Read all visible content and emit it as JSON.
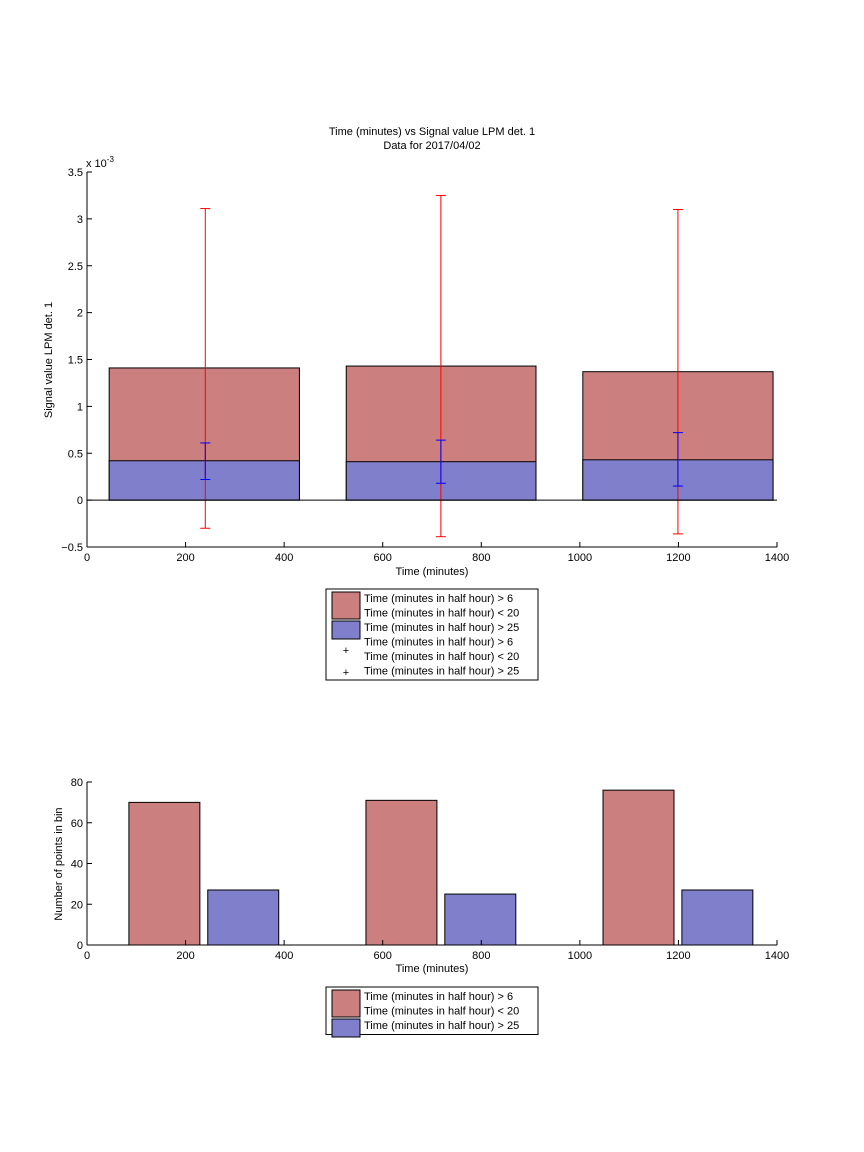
{
  "chart_data": [
    {
      "type": "bar",
      "title": "Time (minutes) vs Signal value LPM det. 1",
      "subtitle": "Data for 2017/04/02",
      "xlabel": "Time (minutes)",
      "ylabel": "Signal value LPM det. 1",
      "y_exponent_label": "x 10",
      "y_exponent_power": "-3",
      "xlim": [
        0,
        1400
      ],
      "ylim": [
        -0.5,
        3.5
      ],
      "y_scale_note": "values in units of 1e-3",
      "x_ticks": [
        0,
        200,
        400,
        600,
        800,
        1000,
        1200,
        1400
      ],
      "x_tick_labels": [
        "0",
        "200",
        "400",
        "600",
        "800",
        "1000",
        "1200",
        "1400"
      ],
      "y_ticks": [
        -0.5,
        0,
        0.5,
        1,
        1.5,
        2,
        2.5,
        3,
        3.5
      ],
      "y_tick_labels": [
        "−0.5",
        "0",
        "0.5",
        "1",
        "1.5",
        "2",
        "2.5",
        "3",
        "3.5"
      ],
      "grid": false,
      "bar_groups": [
        {
          "x_start": 45,
          "x_end": 431,
          "center": 240
        },
        {
          "x_start": 526,
          "x_end": 911,
          "center": 718
        },
        {
          "x_start": 1006,
          "x_end": 1392,
          "center": 1199
        }
      ],
      "series": [
        {
          "name": "Time (minutes in half hour) > 6\nTime (minutes in half hour) < 20",
          "color": "#cc7f7f",
          "values": [
            1.41,
            1.43,
            1.37
          ],
          "errorbar_color": "#ff0000",
          "err_low": [
            -0.3,
            -0.39,
            -0.36
          ],
          "err_high": [
            3.11,
            3.25,
            3.1
          ]
        },
        {
          "name": "Time (minutes in half hour) > 25",
          "color": "#7f7fcc",
          "values": [
            0.42,
            0.41,
            0.43
          ],
          "errorbar_color": "#0000ff",
          "err_low": [
            0.22,
            0.18,
            0.15
          ],
          "err_high": [
            0.61,
            0.64,
            0.72
          ]
        }
      ],
      "legend": {
        "placement": "below",
        "entries": [
          {
            "type": "patch",
            "color": "#cc7f7f",
            "lines": [
              "Time (minutes in half hour) > 6",
              "Time (minutes in half hour) < 20"
            ]
          },
          {
            "type": "patch",
            "color": "#7f7fcc",
            "lines": [
              "Time (minutes in half hour) > 25"
            ]
          },
          {
            "type": "marker",
            "color": "#ff0000",
            "marker": "+",
            "lines": [
              "Time (minutes in half hour) > 6",
              "Time (minutes in half hour) < 20"
            ]
          },
          {
            "type": "marker",
            "color": "#0000ff",
            "marker": "+",
            "lines": [
              "Time (minutes in half hour) > 25"
            ]
          }
        ]
      }
    },
    {
      "type": "bar",
      "title": "",
      "xlabel": "Time (minutes)",
      "ylabel": "Number of points in bin",
      "xlim": [
        0,
        1400
      ],
      "ylim": [
        0,
        80
      ],
      "x_ticks": [
        0,
        200,
        400,
        600,
        800,
        1000,
        1200,
        1400
      ],
      "x_tick_labels": [
        "0",
        "200",
        "400",
        "600",
        "800",
        "1000",
        "1200",
        "1400"
      ],
      "y_ticks": [
        0,
        20,
        40,
        60,
        80
      ],
      "y_tick_labels": [
        "0",
        "20",
        "40",
        "60",
        "80"
      ],
      "grid": false,
      "bars": [
        {
          "series": 0,
          "x_start": 85,
          "x_end": 229,
          "value": 70
        },
        {
          "series": 1,
          "x_start": 245,
          "x_end": 389,
          "value": 27
        },
        {
          "series": 0,
          "x_start": 566,
          "x_end": 710,
          "value": 71
        },
        {
          "series": 1,
          "x_start": 726,
          "x_end": 870,
          "value": 25
        },
        {
          "series": 0,
          "x_start": 1047,
          "x_end": 1191,
          "value": 76
        },
        {
          "series": 1,
          "x_start": 1207,
          "x_end": 1351,
          "value": 27
        }
      ],
      "series": [
        {
          "name": "Time (minutes in half hour) > 6\nTime (minutes in half hour) < 20",
          "color": "#cc7f7f"
        },
        {
          "name": "Time (minutes in half hour) > 25",
          "color": "#7f7fcc"
        }
      ],
      "legend": {
        "placement": "below",
        "entries": [
          {
            "type": "patch",
            "color": "#cc7f7f",
            "lines": [
              "Time (minutes in half hour) > 6",
              "Time (minutes in half hour) < 20"
            ]
          },
          {
            "type": "patch",
            "color": "#7f7fcc",
            "lines": [
              "Time (minutes in half hour) > 25"
            ]
          }
        ]
      }
    }
  ]
}
